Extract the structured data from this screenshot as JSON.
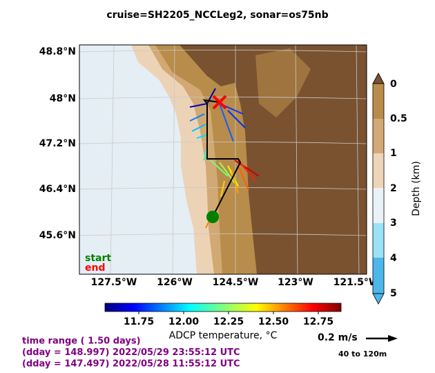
{
  "title": "cruise=SH2205_NCCLeg2,   sonar=os75nb",
  "map": {
    "lat_labels": [
      "48.8°N",
      "48°N",
      "47.2°N",
      "46.4°N",
      "45.6°N"
    ],
    "lon_labels": [
      "127.5°W",
      "126°W",
      "124.5°W",
      "123°W",
      "121.5°W"
    ],
    "start_label": "start",
    "end_label": "end"
  },
  "depth_colorbar": {
    "label": "Depth (km)",
    "ticks": [
      "0",
      "0.5",
      "1",
      "2",
      "3",
      "4",
      "5"
    ]
  },
  "temperature_colorbar": {
    "label": "ADCP temperature, °C",
    "ticks": [
      "11.75",
      "12.00",
      "12.25",
      "12.50",
      "12.75"
    ]
  },
  "scale": {
    "speed": "0.2 m/s",
    "depth_range": "40 to 120m"
  },
  "time_info": [
    "time range ( 1.50 days)",
    "(dday = 148.997) 2022/05/29 23:55:12 UTC",
    "(dday = 147.497) 2022/05/28 11:55:12 UTC"
  ]
}
